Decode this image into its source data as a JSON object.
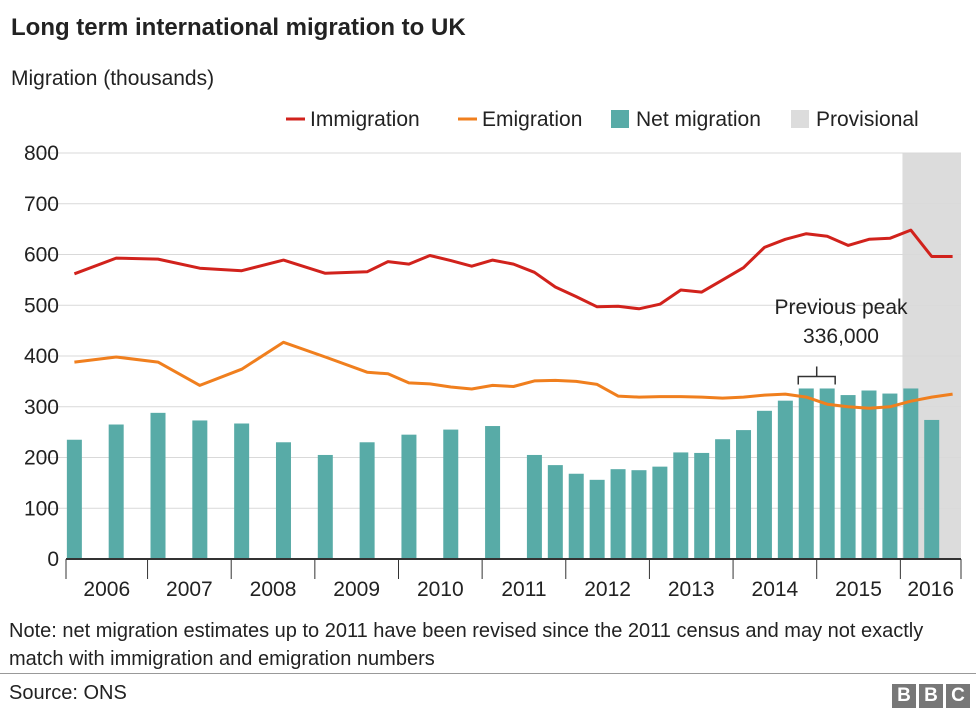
{
  "title": "Long term international migration to UK",
  "subtitle": "Migration (thousands)",
  "note": "Note: net migration estimates up to 2011 have been revised since the 2011 census and may not exactly match with immigration and emigration numbers",
  "source": "Source:  ONS",
  "logo": [
    "B",
    "B",
    "C"
  ],
  "colors": {
    "immigration": "#d1221c",
    "emigration": "#f07f1e",
    "net": "#58aba7",
    "provisional": "#dcdcdc",
    "grid": "#d9d9d9",
    "axis": "#333333",
    "text": "#222222"
  },
  "chart_data": {
    "type": "bar",
    "title": "Long term international migration to UK",
    "ylabel": "Migration (thousands)",
    "xlabel": "",
    "ylim": [
      0,
      800
    ],
    "yticks": [
      0,
      100,
      200,
      300,
      400,
      500,
      600,
      700,
      800
    ],
    "year_labels": [
      "2006",
      "2007",
      "2008",
      "2009",
      "2010",
      "2011",
      "2012",
      "2013",
      "2014",
      "2015",
      "2016"
    ],
    "xlim": [
      2005.9,
      2016.6
    ],
    "legend": [
      "Immigration",
      "Emigration",
      "Net migration",
      "Provisional"
    ],
    "legend_position": "top-right",
    "grid": true,
    "provisional_range": [
      2015.9,
      2016.6
    ],
    "annotation": {
      "line1": "Previous peak",
      "line2": "336,000",
      "x_from": 2014.75,
      "x_to": 2015.0,
      "y": 336
    },
    "series": [
      {
        "name": "Immigration",
        "type": "line",
        "x": [
          2006.0,
          2006.5,
          2007.0,
          2007.5,
          2008.0,
          2008.5,
          2009.0,
          2009.5,
          2009.75,
          2010.0,
          2010.25,
          2010.5,
          2010.75,
          2011.0,
          2011.25,
          2011.5,
          2011.75,
          2012.0,
          2012.25,
          2012.5,
          2012.75,
          2013.0,
          2013.25,
          2013.5,
          2013.75,
          2014.0,
          2014.25,
          2014.5,
          2014.75,
          2015.0,
          2015.25,
          2015.5,
          2015.75,
          2016.0,
          2016.25,
          2016.5
        ],
        "values": [
          562,
          593,
          591,
          573,
          568,
          589,
          563,
          566,
          586,
          581,
          598,
          588,
          577,
          589,
          581,
          565,
          536,
          517,
          497,
          498,
          493,
          502,
          530,
          526,
          550,
          574,
          614,
          630,
          641,
          636,
          618,
          630,
          632,
          648,
          596,
          596
        ]
      },
      {
        "name": "Emigration",
        "type": "line",
        "x": [
          2006.0,
          2006.5,
          2007.0,
          2007.5,
          2008.0,
          2008.5,
          2009.0,
          2009.5,
          2009.75,
          2010.0,
          2010.25,
          2010.5,
          2010.75,
          2011.0,
          2011.25,
          2011.5,
          2011.75,
          2012.0,
          2012.25,
          2012.5,
          2012.75,
          2013.0,
          2013.25,
          2013.5,
          2013.75,
          2014.0,
          2014.25,
          2014.5,
          2014.75,
          2015.0,
          2015.25,
          2015.5,
          2015.75,
          2016.0,
          2016.25,
          2016.5
        ],
        "values": [
          388,
          398,
          388,
          342,
          374,
          427,
          398,
          368,
          365,
          347,
          345,
          339,
          335,
          342,
          340,
          351,
          352,
          350,
          344,
          321,
          319,
          320,
          320,
          319,
          317,
          319,
          323,
          325,
          319,
          305,
          300,
          297,
          300,
          311,
          319,
          325
        ]
      },
      {
        "name": "Net migration",
        "type": "bar",
        "x": [
          2006.0,
          2006.5,
          2007.0,
          2007.5,
          2008.0,
          2008.5,
          2009.0,
          2009.5,
          2010.0,
          2010.5,
          2011.0,
          2011.5,
          2011.75,
          2012.0,
          2012.25,
          2012.5,
          2012.75,
          2013.0,
          2013.25,
          2013.5,
          2013.75,
          2014.0,
          2014.25,
          2014.5,
          2014.75,
          2015.0,
          2015.25,
          2015.5,
          2015.75,
          2016.0,
          2016.25
        ],
        "values": [
          235,
          265,
          288,
          273,
          267,
          230,
          205,
          230,
          245,
          255,
          262,
          205,
          185,
          168,
          156,
          177,
          175,
          182,
          210,
          209,
          236,
          254,
          292,
          312,
          336,
          336,
          323,
          332,
          326,
          336,
          274
        ]
      }
    ]
  }
}
